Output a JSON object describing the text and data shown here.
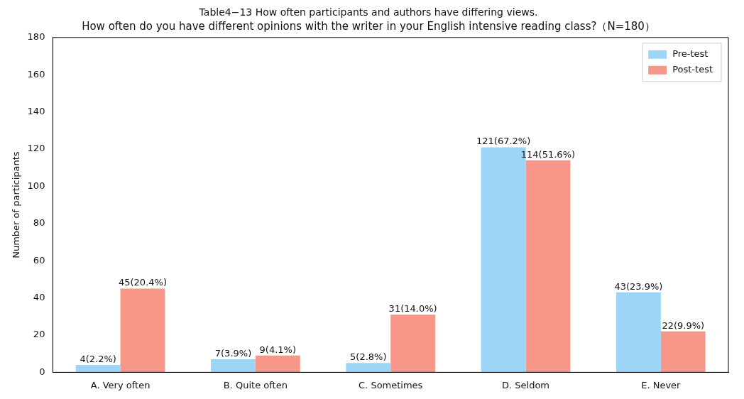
{
  "chart_data": {
    "type": "bar",
    "title": "Table4−13 How often participants and authors have differing views.",
    "subtitle": "How often do you have different opinions with the writer in your English intensive reading class?（N=180）",
    "ylabel": "Number of participants",
    "categories": [
      "A. Very often",
      "B. Quite often",
      "C. Sometimes",
      "D. Seldom",
      "E. Never"
    ],
    "series": [
      {
        "name": "Pre-test",
        "color": "#9dd5f7",
        "values": [
          4,
          7,
          5,
          121,
          43
        ],
        "value_labels": [
          "4(2.2%)",
          "7(3.9%)",
          "5(2.8%)",
          "121(67.2%)",
          "43(23.9%)"
        ]
      },
      {
        "name": "Post-test",
        "color": "#f6978a",
        "values": [
          45,
          9,
          31,
          114,
          22
        ],
        "value_labels": [
          "45(20.4%)",
          "9(4.1%)",
          "31(14.0%)",
          "114(51.6%)",
          "22(9.9%)"
        ]
      }
    ],
    "ylim": [
      0,
      180
    ],
    "yticks": [
      0,
      20,
      40,
      60,
      80,
      100,
      120,
      140,
      160,
      180
    ],
    "legend": "top right"
  }
}
